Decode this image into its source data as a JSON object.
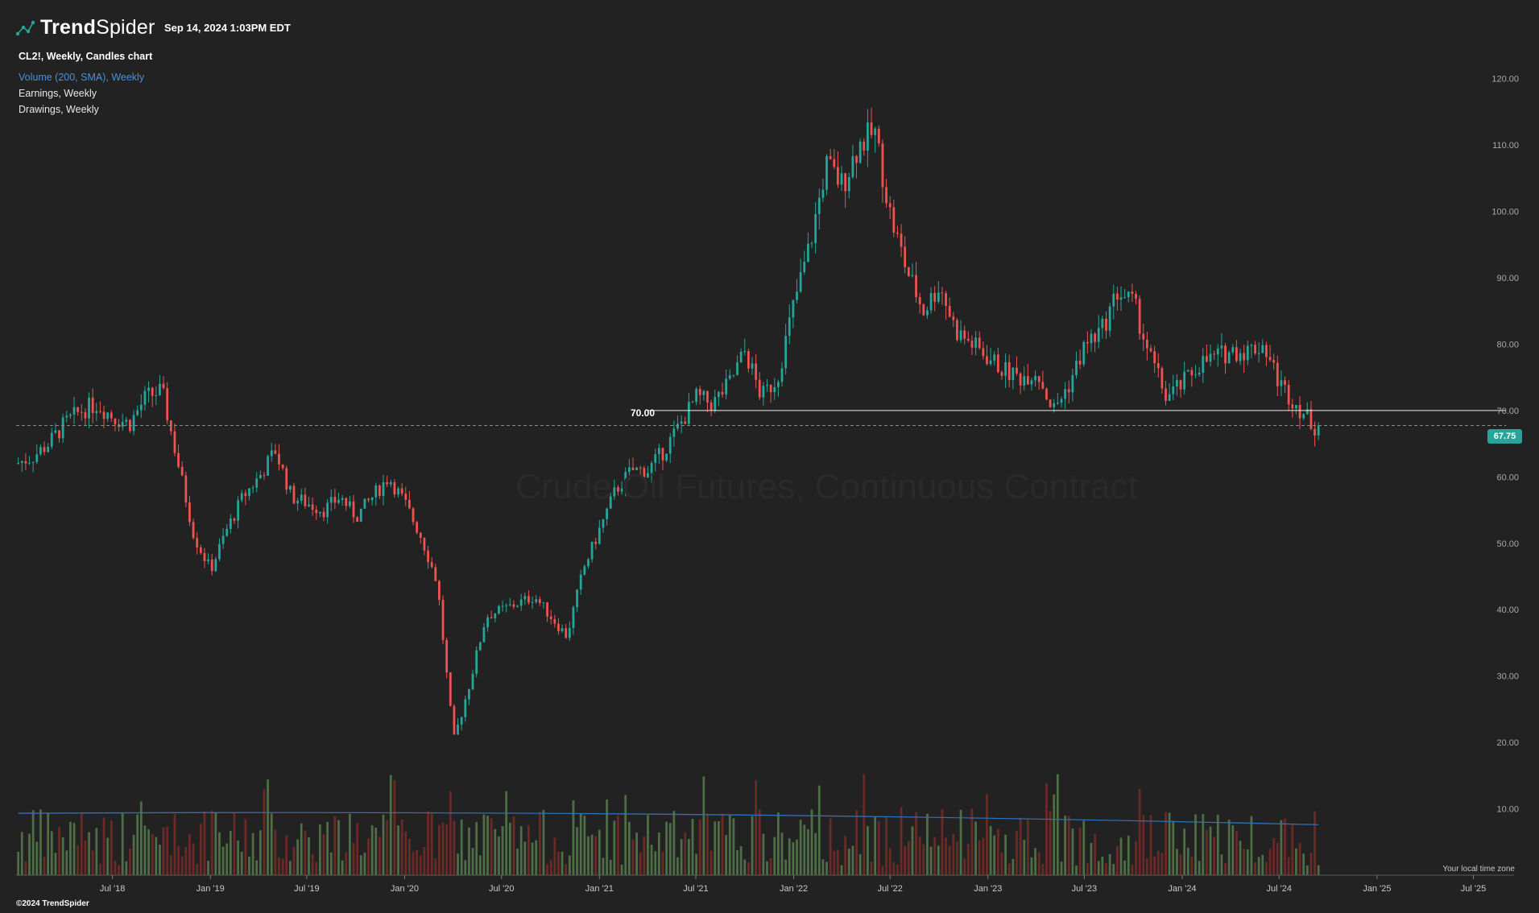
{
  "header": {
    "brand_bold": "Trend",
    "brand_light": "Spider",
    "timestamp": "Sep 14, 2024 1:03PM EDT"
  },
  "legend": {
    "main": "CL2!, Weekly, Candles chart",
    "volume": "Volume (200, SMA), Weekly",
    "earnings": "Earnings, Weekly",
    "drawings": "Drawings, Weekly"
  },
  "footer": {
    "copyright": "©2024 TrendSpider",
    "timezone_note": "Your local time zone"
  },
  "watermark": "Crude Oil Futures, Continuous Contract",
  "colors": {
    "up": "#26a69a",
    "down": "#ef5350",
    "volume_up": "#4e6e46",
    "volume_down": "#6b2a25",
    "volume_sma": "#2f6fb5",
    "background": "#222222"
  },
  "chart_data": {
    "type": "candlestick",
    "symbol": "CL2!",
    "interval": "Weekly",
    "last_price": 67.75,
    "last_price_label": "67.75",
    "horizontal_line": {
      "value": 70.0,
      "label": "70.00",
      "start": "2021-04"
    },
    "price_axis": {
      "range": [
        0,
        127
      ],
      "ticks": [
        "10.00",
        "20.00",
        "30.00",
        "40.00",
        "50.00",
        "60.00",
        "70.00",
        "80.00",
        "90.00",
        "100.00",
        "110.00",
        "120.00"
      ]
    },
    "time_axis": {
      "range": [
        "2018-01",
        "2025-08"
      ],
      "ticks": [
        {
          "label": "Jul '18",
          "date": "2018-07"
        },
        {
          "label": "Jan '19",
          "date": "2019-01"
        },
        {
          "label": "Jul '19",
          "date": "2019-07"
        },
        {
          "label": "Jan '20",
          "date": "2020-01"
        },
        {
          "label": "Jul '20",
          "date": "2020-07"
        },
        {
          "label": "Jan '21",
          "date": "2021-01"
        },
        {
          "label": "Jul '21",
          "date": "2021-07"
        },
        {
          "label": "Jan '22",
          "date": "2022-01"
        },
        {
          "label": "Jul '22",
          "date": "2022-07"
        },
        {
          "label": "Jan '23",
          "date": "2023-01"
        },
        {
          "label": "Jul '23",
          "date": "2023-07"
        },
        {
          "label": "Jan '24",
          "date": "2024-01"
        },
        {
          "label": "Jul '24",
          "date": "2024-07"
        },
        {
          "label": "Jan '25",
          "date": "2025-01"
        },
        {
          "label": "Jul '25",
          "date": "2025-07"
        }
      ]
    },
    "price_path_monthly": {
      "start": "2018-01",
      "close": [
        62,
        63,
        65,
        68,
        70,
        71,
        69,
        68,
        72,
        73,
        62,
        51,
        46,
        52,
        57,
        60,
        64,
        57,
        56,
        55,
        57,
        54,
        57,
        60,
        56,
        51,
        44,
        20,
        29,
        39,
        40,
        41,
        42,
        39,
        36,
        46,
        52,
        58,
        61,
        61,
        64,
        68,
        72,
        71,
        74,
        79,
        72,
        75,
        86,
        95,
        107,
        104,
        110,
        112,
        99,
        91,
        85,
        89,
        82,
        80,
        78,
        76,
        75,
        76,
        70,
        74,
        80,
        82,
        88,
        86,
        78,
        72,
        74,
        77,
        78,
        79,
        79,
        80,
        74,
        71
      ]
    },
    "volume_sma": {
      "period": 200,
      "start_level": 6.5,
      "end_level": 5.3
    }
  }
}
